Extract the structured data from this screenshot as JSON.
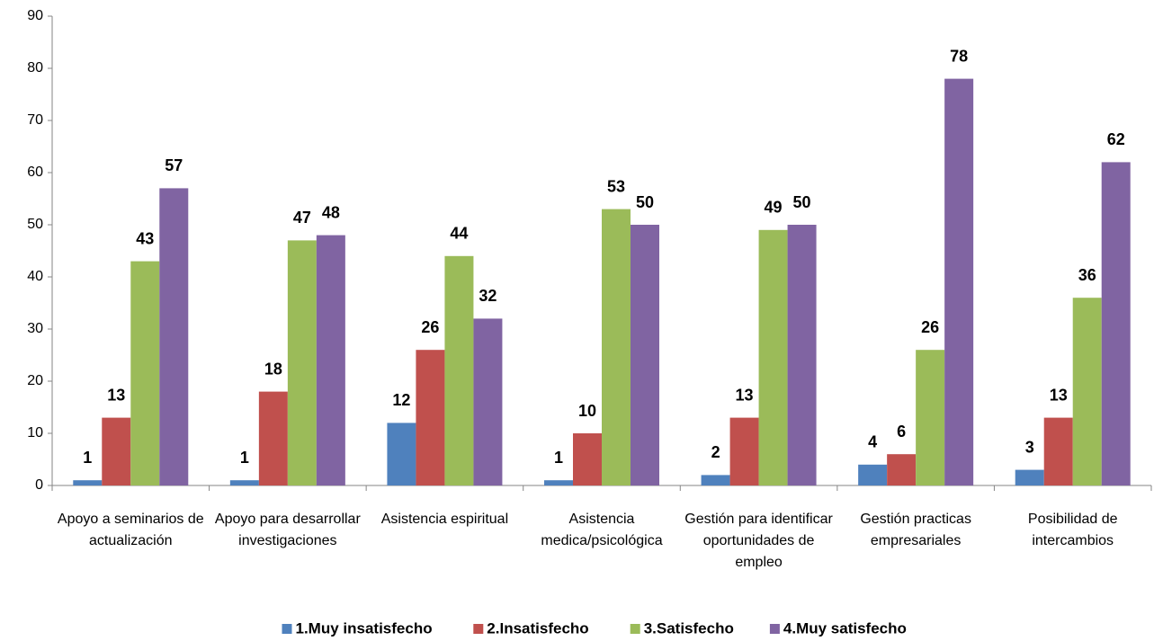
{
  "chart_data": {
    "type": "bar",
    "categories": [
      "Apoyo a seminarios de actualización",
      "Apoyo para desarrollar investigaciones",
      "Asistencia espiritual",
      "Asistencia medica/psicológica",
      "Gestión para identificar oportunidades de empleo",
      "Gestión practicas empresariales",
      "Posibilidad de intercambios"
    ],
    "series": [
      {
        "name": "1.Muy insatisfecho",
        "color": "#4f81bd",
        "values": [
          1,
          1,
          12,
          1,
          2,
          4,
          3
        ]
      },
      {
        "name": "2.Insatisfecho",
        "color": "#c0504d",
        "values": [
          13,
          18,
          26,
          10,
          13,
          6,
          13
        ]
      },
      {
        "name": "3.Satisfecho",
        "color": "#9bbb59",
        "values": [
          43,
          47,
          44,
          53,
          49,
          26,
          36
        ]
      },
      {
        "name": "4.Muy satisfecho",
        "color": "#8064a2",
        "values": [
          57,
          48,
          32,
          50,
          50,
          78,
          62
        ]
      }
    ],
    "ylim": [
      0,
      90
    ],
    "yticks": [
      0,
      10,
      20,
      30,
      40,
      50,
      60,
      70,
      80,
      90
    ],
    "grid": false,
    "legend": "bottom"
  }
}
